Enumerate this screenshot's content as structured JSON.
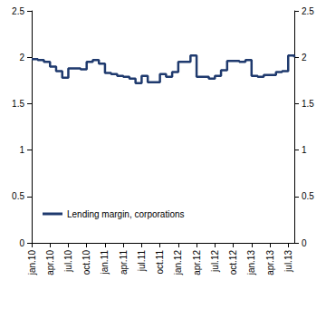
{
  "chart_data": {
    "type": "line",
    "line_style": "step",
    "legend": "lower left",
    "grid": false,
    "categories": [
      "jan.10",
      null,
      null,
      "apr.10",
      null,
      null,
      "jul.10",
      null,
      null,
      "oct.10",
      null,
      null,
      "jan.11",
      null,
      null,
      "apr.11",
      null,
      null,
      "jul.11",
      null,
      null,
      "oct.11",
      null,
      null,
      "jan.12",
      null,
      null,
      "apr.12",
      null,
      null,
      "jul.12",
      null,
      null,
      "oct.12",
      null,
      null,
      "jan.13",
      null,
      null,
      "apr.13",
      null,
      null,
      "jul.13",
      null
    ],
    "series": [
      {
        "name": "Lending margin, corporations",
        "color": "#1f3a6e",
        "values": [
          1.98,
          1.97,
          1.95,
          1.9,
          1.85,
          1.78,
          1.88,
          1.88,
          1.87,
          1.95,
          1.97,
          1.93,
          1.83,
          1.82,
          1.8,
          1.79,
          1.77,
          1.72,
          1.8,
          1.73,
          1.73,
          1.82,
          1.79,
          1.84,
          1.95,
          1.95,
          2.02,
          1.79,
          1.79,
          1.77,
          1.8,
          1.86,
          1.96,
          1.96,
          1.95,
          1.97,
          1.8,
          1.79,
          1.81,
          1.81,
          1.84,
          1.85,
          2.02,
          2.0
        ]
      }
    ],
    "ylim": [
      0,
      2.5
    ],
    "yticks": [
      0,
      0.5,
      1,
      1.5,
      2,
      2.5
    ]
  }
}
